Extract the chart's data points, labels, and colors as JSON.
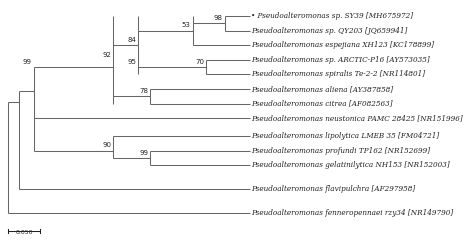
{
  "taxa": [
    "• Pseudoalteromonas sp. SY39 [MH675972]",
    "Pseudoalteromonas sp. QY203 [JQ659941]",
    "Pseudoalteromonas espejiana XH123 [KC178899]",
    "Pseudoalteromonas sp. ARCTIC-P16 [AY573035]",
    "Pseudoalteromonas spiralis Te-2-2 [NR114801]",
    "Pseudoalteromonas aliena [AY387858]",
    "Pseudoalteromonas citrea [AF082563]",
    "Pseudoalteromonas neustonica PAMC 28425 [NR151996]",
    "Pseudoalteromonas lipolytica LMEB 35 [FM04721]",
    "Pseudoalteromonas profundi TP162 [NR152699]",
    "Pseudoalteromonas gelatinilytica NH153 [NR152003]",
    "Pseudoalteromonas flavipulchra [AF297958]",
    "Pseudoalteromonas fenneropennaei rzy34 [NR149790]"
  ],
  "leaf_y": [
    0,
    1,
    2,
    3,
    4,
    5,
    6,
    7,
    8.2,
    9.2,
    10.2,
    11.8,
    13.5
  ],
  "line_color": "#666666",
  "text_color": "#222222",
  "bg_color": "#ffffff",
  "label_fontsize": 5.2,
  "bs_fontsize": 5.0,
  "lw": 0.75,
  "scale_bar_label": "0.050"
}
